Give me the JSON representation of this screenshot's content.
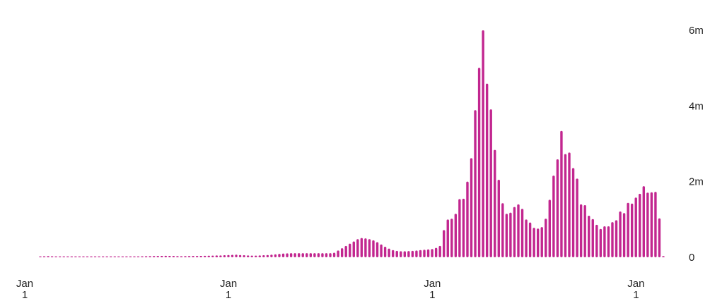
{
  "chart_data": {
    "type": "bar",
    "title": "",
    "xlabel": "",
    "ylabel": "",
    "bar_color": "#c2268f",
    "y_ticks": [
      {
        "value": 0,
        "label": "0"
      },
      {
        "value": 2000000,
        "label": "2m"
      },
      {
        "value": 4000000,
        "label": "4m"
      },
      {
        "value": 6000000,
        "label": "6m"
      }
    ],
    "ylim": [
      0,
      6000000
    ],
    "x_ticks": [
      {
        "index": 0,
        "line1": "Jan",
        "line2": "1"
      },
      {
        "index": 52,
        "line1": "Jan",
        "line2": "1"
      },
      {
        "index": 104,
        "line1": "Jan",
        "line2": "1"
      },
      {
        "index": 156,
        "line1": "Jan",
        "line2": "1"
      }
    ],
    "grid": false,
    "legend": "none",
    "values": [
      20000,
      25000,
      30000,
      25000,
      15000,
      10000,
      8000,
      5000,
      5000,
      5000,
      6000,
      8000,
      10000,
      10000,
      12000,
      12000,
      14000,
      15000,
      15000,
      16000,
      16000,
      18000,
      20000,
      20000,
      22000,
      24000,
      26000,
      28000,
      30000,
      32000,
      35000,
      38000,
      40000,
      38000,
      35000,
      30000,
      28000,
      30000,
      32000,
      34000,
      36000,
      38000,
      40000,
      42000,
      45000,
      48000,
      50000,
      55000,
      60000,
      65000,
      70000,
      60000,
      55000,
      50000,
      45000,
      45000,
      50000,
      55000,
      60000,
      70000,
      80000,
      90000,
      100000,
      105000,
      110000,
      110000,
      110000,
      110000,
      110000,
      110000,
      110000,
      110000,
      110000,
      110000,
      110000,
      120000,
      180000,
      240000,
      300000,
      360000,
      420000,
      480000,
      510000,
      500000,
      480000,
      450000,
      400000,
      340000,
      280000,
      230000,
      190000,
      170000,
      160000,
      160000,
      165000,
      170000,
      180000,
      190000,
      200000,
      210000,
      220000,
      250000,
      300000,
      720000,
      1000000,
      1020000,
      1150000,
      1540000,
      1550000,
      2000000,
      2620000,
      3890000,
      5010000,
      6000000,
      4590000,
      3910000,
      2840000,
      2050000,
      1430000,
      1150000,
      1180000,
      1330000,
      1400000,
      1280000,
      1000000,
      920000,
      780000,
      760000,
      800000,
      1020000,
      1520000,
      2160000,
      2590000,
      3340000,
      2730000,
      2770000,
      2360000,
      2080000,
      1400000,
      1380000,
      1100000,
      1010000,
      860000,
      750000,
      820000,
      820000,
      930000,
      980000,
      1210000,
      1170000,
      1440000,
      1420000,
      1580000,
      1680000,
      1880000,
      1710000,
      1720000,
      1730000,
      1030000,
      30000
    ]
  }
}
